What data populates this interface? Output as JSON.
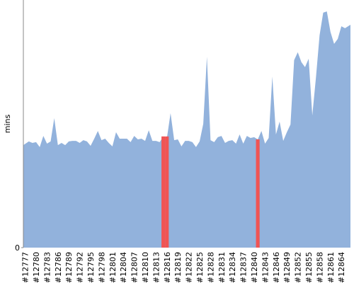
{
  "chart_data": {
    "type": "area",
    "y_label": "mins",
    "categories": [
      "#12777",
      null,
      null,
      "#12780",
      null,
      null,
      "#12783",
      null,
      null,
      "#12786",
      null,
      null,
      "#12789",
      null,
      null,
      "#12792",
      null,
      null,
      "#12795",
      null,
      null,
      "#12798",
      null,
      null,
      "#12801",
      null,
      null,
      "#12804",
      null,
      null,
      "#12807",
      null,
      null,
      "#12810",
      null,
      null,
      "#12813",
      null,
      null,
      "#12816",
      null,
      null,
      "#12819",
      null,
      null,
      "#12822",
      null,
      null,
      "#12825",
      null,
      null,
      "#12828",
      null,
      null,
      "#12831",
      null,
      null,
      "#12834",
      null,
      null,
      "#12837",
      null,
      null,
      "#12840",
      null,
      null,
      "#12843",
      null,
      null,
      "#12846",
      null,
      null,
      "#12849",
      null,
      null,
      "#12852",
      null,
      null,
      "#12855",
      null,
      null,
      "#12858",
      null,
      null,
      "#12861",
      null,
      null,
      "#12864",
      null,
      null
    ],
    "series": [
      {
        "type": "area",
        "color": "#92b2dc",
        "values": [
          41.4,
          42.9,
          42.3,
          42.6,
          40.6,
          45.1,
          42,
          42.9,
          52.3,
          41.4,
          42.3,
          41.4,
          42.9,
          43.1,
          43.1,
          42.3,
          43.4,
          42.9,
          41.1,
          44,
          47.1,
          43.4,
          44,
          42.3,
          40.9,
          46.6,
          44,
          44,
          44,
          42.6,
          45.1,
          43.7,
          44,
          43.1,
          47.4,
          43.1,
          43.1,
          42.6,
          44.9,
          44.3,
          54.3,
          43.4,
          43.7,
          40.9,
          43.1,
          43.1,
          42.6,
          40.6,
          42.9,
          50,
          77.1,
          43.4,
          42.6,
          44.6,
          45.1,
          42.3,
          43.1,
          43.4,
          42,
          45.7,
          42,
          45.1,
          44.3,
          44.6,
          43.7,
          47.1,
          42,
          44.3,
          69.1,
          45.7,
          50.9,
          43.1,
          46.6,
          49.7,
          75.7,
          78.9,
          74.9,
          72.9,
          76.3,
          53.4,
          68.6,
          85.7,
          94.9,
          95.4,
          87.1,
          82.3,
          84.3,
          89.4,
          88.6,
          90
        ]
      },
      {
        "type": "bar",
        "color": "#f05454",
        "values": [
          null,
          null,
          null,
          null,
          null,
          null,
          null,
          null,
          null,
          null,
          null,
          null,
          null,
          null,
          null,
          null,
          null,
          null,
          null,
          null,
          null,
          null,
          null,
          null,
          null,
          null,
          null,
          null,
          null,
          null,
          null,
          null,
          null,
          null,
          null,
          null,
          null,
          null,
          44.9,
          44.9,
          null,
          null,
          null,
          null,
          null,
          null,
          null,
          null,
          null,
          null,
          null,
          null,
          null,
          null,
          null,
          null,
          null,
          null,
          null,
          null,
          null,
          null,
          null,
          null,
          43.7,
          null,
          null,
          null,
          null,
          null,
          null,
          null,
          null,
          null,
          null,
          null,
          null,
          null,
          null,
          null,
          null,
          null,
          null,
          null,
          null,
          null,
          null,
          null,
          null,
          null
        ]
      }
    ],
    "ylim": [
      0,
      100
    ],
    "yticks": [
      0
    ]
  }
}
